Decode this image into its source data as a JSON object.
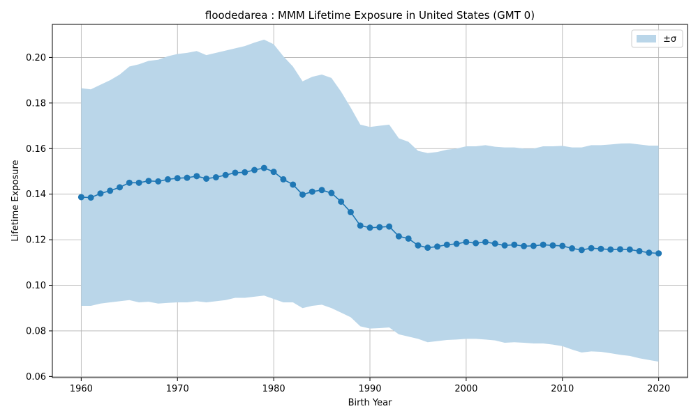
{
  "chart_data": {
    "type": "line",
    "title": "floodedarea : MMM Lifetime Exposure in United States (GMT 0)",
    "xlabel": "Birth Year",
    "ylabel": "Lifetime Exposure",
    "xlim": [
      1957,
      2023
    ],
    "ylim": [
      0.0595,
      0.2145
    ],
    "x_ticks": [
      1960,
      1970,
      1980,
      1990,
      2000,
      2010,
      2020
    ],
    "y_ticks": [
      0.06,
      0.08,
      0.1,
      0.12,
      0.14,
      0.16,
      0.18,
      0.2
    ],
    "y_tick_labels": [
      "0.06",
      "0.08",
      "0.10",
      "0.12",
      "0.14",
      "0.16",
      "0.18",
      "0.20"
    ],
    "grid": true,
    "legend_position": "top-right",
    "legend_label": "±σ",
    "colors": {
      "line": "#1f77b4",
      "band": "#bad6e9",
      "grid": "#b0b0b0"
    },
    "x": [
      1960,
      1961,
      1962,
      1963,
      1964,
      1965,
      1966,
      1967,
      1968,
      1969,
      1970,
      1971,
      1972,
      1973,
      1974,
      1975,
      1976,
      1977,
      1978,
      1979,
      1980,
      1981,
      1982,
      1983,
      1984,
      1985,
      1986,
      1987,
      1988,
      1989,
      1990,
      1991,
      1992,
      1993,
      1994,
      1995,
      1996,
      1997,
      1998,
      1999,
      2000,
      2001,
      2002,
      2003,
      2004,
      2005,
      2006,
      2007,
      2008,
      2009,
      2010,
      2011,
      2012,
      2013,
      2014,
      2015,
      2016,
      2017,
      2018,
      2019,
      2020
    ],
    "series": [
      {
        "values": [
          0.1387,
          0.1385,
          0.1403,
          0.1415,
          0.143,
          0.145,
          0.145,
          0.1458,
          0.1456,
          0.1465,
          0.147,
          0.1472,
          0.1479,
          0.1468,
          0.1474,
          0.1484,
          0.1494,
          0.1496,
          0.1506,
          0.1515,
          0.1498,
          0.1465,
          0.1442,
          0.1398,
          0.1411,
          0.1418,
          0.1405,
          0.1367,
          0.1321,
          0.1262,
          0.1253,
          0.1255,
          0.1258,
          0.1215,
          0.1205,
          0.1175,
          0.1165,
          0.117,
          0.1178,
          0.1182,
          0.119,
          0.1185,
          0.119,
          0.1183,
          0.1175,
          0.1178,
          0.1172,
          0.1173,
          0.1178,
          0.1175,
          0.1173,
          0.1162,
          0.1155,
          0.1163,
          0.116,
          0.1157,
          0.1158,
          0.1157,
          0.115,
          0.1143,
          0.114
        ],
        "upper": [
          0.1865,
          0.186,
          0.188,
          0.19,
          0.1925,
          0.196,
          0.197,
          0.1985,
          0.199,
          0.2005,
          0.2015,
          0.202,
          0.2028,
          0.201,
          0.202,
          0.203,
          0.204,
          0.205,
          0.2065,
          0.2078,
          0.2058,
          0.2005,
          0.196,
          0.1895,
          0.1915,
          0.1925,
          0.191,
          0.185,
          0.178,
          0.1705,
          0.1695,
          0.17,
          0.1705,
          0.1645,
          0.163,
          0.159,
          0.158,
          0.1585,
          0.1595,
          0.16,
          0.161,
          0.161,
          0.1615,
          0.1608,
          0.1605,
          0.1605,
          0.16,
          0.16,
          0.161,
          0.161,
          0.1612,
          0.1605,
          0.1605,
          0.1615,
          0.1615,
          0.1618,
          0.1622,
          0.1623,
          0.1618,
          0.1613,
          0.1613
        ],
        "lower": [
          0.091,
          0.091,
          0.092,
          0.0925,
          0.093,
          0.0935,
          0.0925,
          0.0928,
          0.092,
          0.0923,
          0.0925,
          0.0925,
          0.093,
          0.0925,
          0.093,
          0.0935,
          0.0945,
          0.0945,
          0.095,
          0.0955,
          0.094,
          0.0925,
          0.0925,
          0.09,
          0.091,
          0.0915,
          0.09,
          0.088,
          0.086,
          0.082,
          0.081,
          0.0812,
          0.0815,
          0.0785,
          0.0775,
          0.0765,
          0.075,
          0.0755,
          0.076,
          0.0762,
          0.0765,
          0.0765,
          0.0762,
          0.0758,
          0.0748,
          0.075,
          0.0748,
          0.0745,
          0.0745,
          0.074,
          0.0733,
          0.0718,
          0.0705,
          0.071,
          0.0708,
          0.0702,
          0.0695,
          0.069,
          0.068,
          0.0672,
          0.0665
        ]
      }
    ]
  }
}
